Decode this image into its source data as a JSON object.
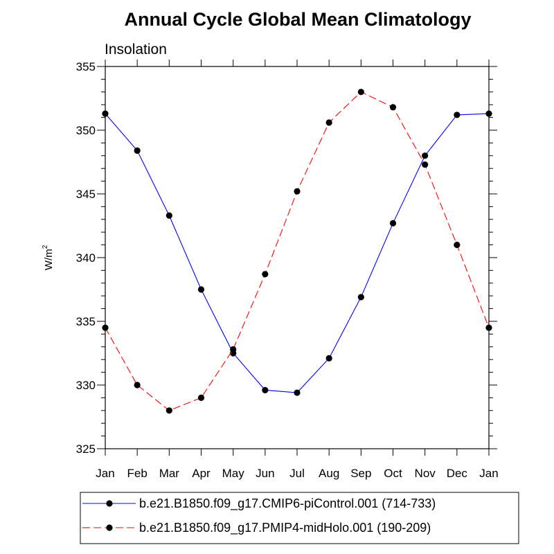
{
  "chart_data": {
    "type": "line",
    "title": "Annual Cycle Global Mean Climatology",
    "subtitle": "Insolation",
    "xlabel": "",
    "ylabel_base": "W/m",
    "ylabel_sup": "2",
    "categories": [
      "Jan",
      "Feb",
      "Mar",
      "Apr",
      "May",
      "Jun",
      "Jul",
      "Aug",
      "Sep",
      "Oct",
      "Nov",
      "Dec",
      "Jan"
    ],
    "ylim": [
      325,
      355
    ],
    "yticks": [
      325,
      330,
      335,
      340,
      345,
      350,
      355
    ],
    "grid": false,
    "legend_position": "bottom",
    "series": [
      {
        "name": "b.e21.B1850.f09_g17.CMIP6-piControl.001 (714-733)",
        "color": "#0000ff",
        "dash": "solid",
        "values": [
          351.3,
          348.4,
          343.3,
          337.5,
          332.5,
          329.6,
          329.4,
          332.1,
          336.9,
          342.7,
          348.0,
          351.2,
          351.3
        ]
      },
      {
        "name": "b.e21.B1850.f09_g17.PMIP4-midHolo.001 (190-209)",
        "color": "#ff0000",
        "dash": "dashed",
        "values": [
          334.5,
          330.0,
          328.0,
          329.0,
          332.8,
          338.7,
          345.2,
          350.6,
          353.0,
          351.8,
          347.3,
          341.0,
          334.5
        ]
      }
    ]
  }
}
